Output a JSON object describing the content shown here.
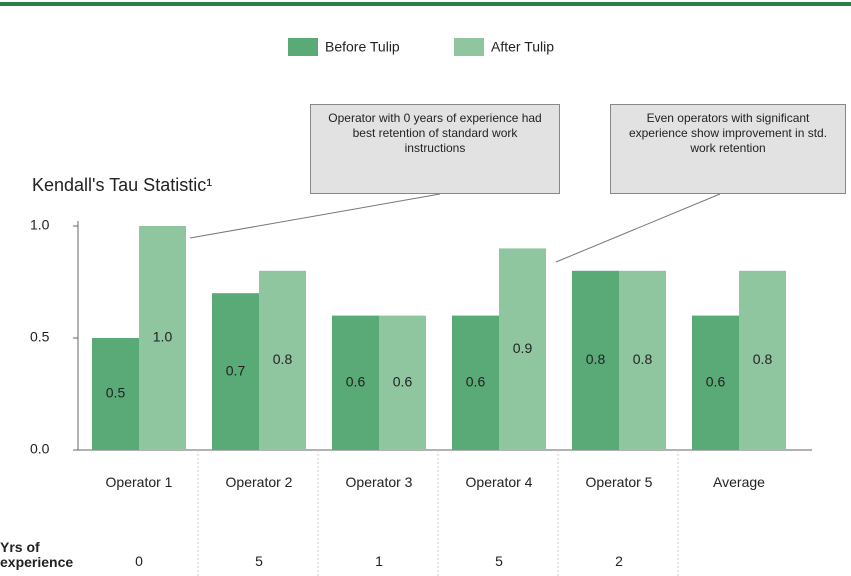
{
  "chart_data": {
    "type": "bar",
    "y_axis_title": "Kendall's Tau Statistic¹",
    "categories": [
      "Operator 1",
      "Operator 2",
      "Operator 3",
      "Operator 4",
      "Operator 5",
      "Average"
    ],
    "series": [
      {
        "name": "Before Tulip",
        "color": "#5aaa78",
        "values": [
          0.5,
          0.7,
          0.6,
          0.6,
          0.8,
          0.6
        ],
        "value_labels": [
          "0.5",
          "0.7",
          "0.6",
          "0.6",
          "0.8",
          "0.6"
        ]
      },
      {
        "name": "After Tulip",
        "color": "#8fc6a0",
        "values": [
          1.0,
          0.8,
          0.6,
          0.9,
          0.8,
          0.8
        ],
        "value_labels": [
          "1.0",
          "0.8",
          "0.6",
          "0.9",
          "0.8",
          "0.8"
        ]
      }
    ],
    "ylim": [
      0,
      1.0
    ],
    "yticks": [
      {
        "value": 0,
        "label": "0.0"
      },
      0.5,
      {
        "value": 1.0,
        "label": "1.0"
      }
    ],
    "experience": {
      "label": "Yrs of experience",
      "values": [
        0,
        5,
        1,
        5,
        2,
        null
      ]
    },
    "annotations": [
      {
        "text": "Operator with 0 years of experience had best retention of standard work instructions"
      },
      {
        "text": "Even operators with significant experience show improvement in std. work retention"
      }
    ]
  }
}
